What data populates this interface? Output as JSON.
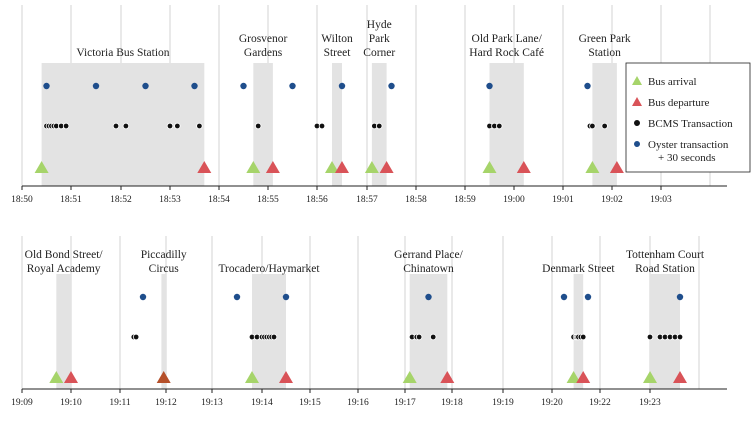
{
  "chart_data": [
    {
      "type": "timeline",
      "panel": "top",
      "xlim": [
        "18:50",
        "19:04"
      ],
      "tick_labels": [
        "18:50",
        "18:51",
        "18:52",
        "18:53",
        "18:54",
        "18:55",
        "18:56",
        "18:57",
        "18:58",
        "18:59",
        "19:00",
        "19:01",
        "19:02",
        "19:03"
      ],
      "stops": [
        {
          "name": [
            "Victoria Bus Station"
          ],
          "arrival": "18:50.4",
          "departure": "18:53.7",
          "oyster": [
            "18:50.5",
            "18:51.5",
            "18:52.5",
            "18:53.5"
          ],
          "bcms": [
            "18:50.5",
            "18:50.55",
            "18:50.6",
            "18:50.65",
            "18:50.7",
            "18:50.8",
            "18:50.9",
            "18:51.9",
            "18:52.1",
            "18:53.0",
            "18:53.15",
            "18:53.6"
          ]
        },
        {
          "name": [
            "Grosvenor",
            "Gardens"
          ],
          "arrival": "18:54.7",
          "departure": "18:55.1",
          "oyster": [
            "18:54.5",
            "18:55.5"
          ],
          "bcms": [
            "18:54.8"
          ]
        },
        {
          "name": [
            "Wilton",
            "Street"
          ],
          "arrival": "18:56.3",
          "departure": "18:56.5",
          "oyster": [
            "18:56.5"
          ],
          "bcms": [
            "18:56.0",
            "18:56.1"
          ]
        },
        {
          "name": [
            "Hyde",
            "Park",
            "Corner"
          ],
          "arrival": "18:57.1",
          "departure": "18:57.4",
          "oyster": [
            "18:57.5"
          ],
          "bcms": [
            "18:57.15",
            "18:57.25"
          ]
        },
        {
          "name": [
            "Old Park Lane/",
            "Hard Rock Café"
          ],
          "arrival": "18:59.5",
          "departure": "19:00.2",
          "oyster": [
            "18:59.5"
          ],
          "bcms": [
            "18:59.5",
            "18:59.6",
            "18:59.7"
          ]
        },
        {
          "name": [
            "Green Park",
            "Station"
          ],
          "arrival": "19:01.6",
          "departure": "19:02.1",
          "oyster": [
            "19:01.5"
          ],
          "bcms": [
            "19:01.55",
            "19:01.6",
            "19:01.85"
          ]
        }
      ]
    },
    {
      "type": "timeline",
      "panel": "bottom",
      "tick_labels": [
        "19:09",
        "19:10",
        "19:11",
        "19:12",
        "19:13",
        "19:14",
        "19:15",
        "19:16",
        "19:17",
        "19:18",
        "19:19",
        "19:20",
        "19:22",
        "19:23"
      ],
      "stops": [
        {
          "name": [
            "Old Bond Street/",
            "Royal Academy"
          ],
          "arrival": "19:09.7",
          "departure": "19:10.0",
          "oyster": [],
          "bcms": []
        },
        {
          "name": [
            "Piccadilly",
            "Circus"
          ],
          "arrival": "19:11.9",
          "departure": "19:12.0",
          "oyster": [
            "19:11.5"
          ],
          "bcms": [
            "19:11.3",
            "19:11.35"
          ]
        },
        {
          "name": [
            "Trocadero/Haymarket"
          ],
          "arrival": "19:13.8",
          "departure": "19:14.5",
          "oyster": [
            "19:13.5",
            "19:14.5"
          ],
          "bcms": [
            "19:13.8",
            "19:13.9",
            "19:14.0",
            "19:14.05",
            "19:14.1",
            "19:14.15",
            "19:14.2",
            "19:14.25"
          ]
        },
        {
          "name": [
            "Gerrand Place/",
            "Chinatown"
          ],
          "arrival": "19:17.1",
          "departure": "19:17.9",
          "oyster": [
            "19:17.5"
          ],
          "bcms": [
            "19:17.15",
            "19:17.25",
            "19:17.3",
            "19:17.6"
          ]
        },
        {
          "name": [
            "Denmark Street"
          ],
          "arrival": "19:20.9",
          "departure": "19:21.3",
          "oyster": [
            "19:20.5",
            "19:21.5"
          ],
          "bcms": [
            "19:20.9",
            "19:21.0",
            "19:21.05",
            "19:21.1",
            "19:21.2",
            "19:21.3"
          ]
        },
        {
          "name": [
            "Tottenham Court",
            "Road Station"
          ],
          "arrival": "19:23.0",
          "departure": "19:23.6",
          "oyster": [
            "19:23.6"
          ],
          "bcms": [
            "19:23.0",
            "19:23.2",
            "19:23.3",
            "19:23.4",
            "19:23.5",
            "19:23.6"
          ]
        }
      ]
    }
  ],
  "legend": {
    "placement": "top-right",
    "items": [
      {
        "label": "Bus arrival",
        "marker": "triangle",
        "color": "#a6d46a"
      },
      {
        "label": "Bus departure",
        "marker": "triangle",
        "color": "#d95358"
      },
      {
        "label": "BCMS Transaction",
        "marker": "dot",
        "color": "#111111"
      },
      {
        "label": "Oyster transaction",
        "label2": "+ 30 seconds",
        "marker": "dot",
        "color": "#1f4e8c"
      }
    ]
  },
  "colors": {
    "arrival": "#a6d46a",
    "departure": "#d95358",
    "overlap": "#b5502a",
    "bcms": "#111111",
    "oyster": "#1f4e8c",
    "dwell_band": "#e3e3e3",
    "gridline": "#c8c8c8",
    "axis": "#222222"
  }
}
